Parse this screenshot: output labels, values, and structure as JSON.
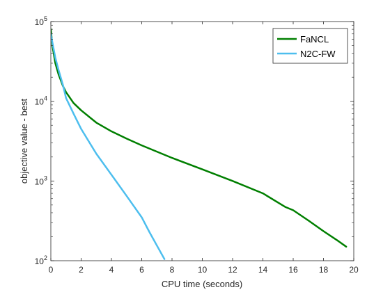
{
  "chart_data": {
    "type": "line",
    "title": "",
    "xlabel": "CPU time (seconds)",
    "ylabel": "objective value - best",
    "xlim": [
      0,
      20
    ],
    "ylim": [
      100,
      100000
    ],
    "yscale": "log",
    "x_ticks": [
      0,
      2,
      4,
      6,
      8,
      10,
      12,
      14,
      16,
      18,
      20
    ],
    "x_tick_labels": [
      "0",
      "2",
      "4",
      "6",
      "8",
      "10",
      "12",
      "14",
      "16",
      "18",
      "20"
    ],
    "y_ticks": [
      100,
      1000,
      10000,
      100000
    ],
    "y_tick_labels": [
      {
        "base": "10",
        "exp": "2"
      },
      {
        "base": "10",
        "exp": "3"
      },
      {
        "base": "10",
        "exp": "4"
      },
      {
        "base": "10",
        "exp": "5"
      }
    ],
    "grid": false,
    "legend": {
      "position": "top-right"
    },
    "series": [
      {
        "name": "FaNCL",
        "color": "#007f00",
        "x": [
          0,
          0.1,
          0.3,
          0.5,
          0.8,
          1.0,
          1.5,
          2.0,
          3.0,
          4.0,
          5.0,
          6.0,
          8.0,
          10.0,
          12.0,
          14.0,
          15.5,
          16.0,
          17.0,
          18.0,
          19.0,
          19.5
        ],
        "y": [
          80000,
          50000,
          30000,
          22000,
          15500,
          13000,
          9500,
          7700,
          5400,
          4200,
          3400,
          2800,
          1950,
          1400,
          1000,
          700,
          470,
          430,
          320,
          235,
          175,
          150
        ]
      },
      {
        "name": "N2C-FW",
        "color": "#4dbeee",
        "x": [
          0,
          0.1,
          0.3,
          0.5,
          0.8,
          1.0,
          1.5,
          2.0,
          3.0,
          4.0,
          5.0,
          6.0,
          6.5,
          7.0,
          7.5
        ],
        "y": [
          70000,
          55000,
          35000,
          25000,
          16000,
          11000,
          7000,
          4500,
          2200,
          1200,
          650,
          350,
          230,
          155,
          105
        ]
      }
    ]
  }
}
